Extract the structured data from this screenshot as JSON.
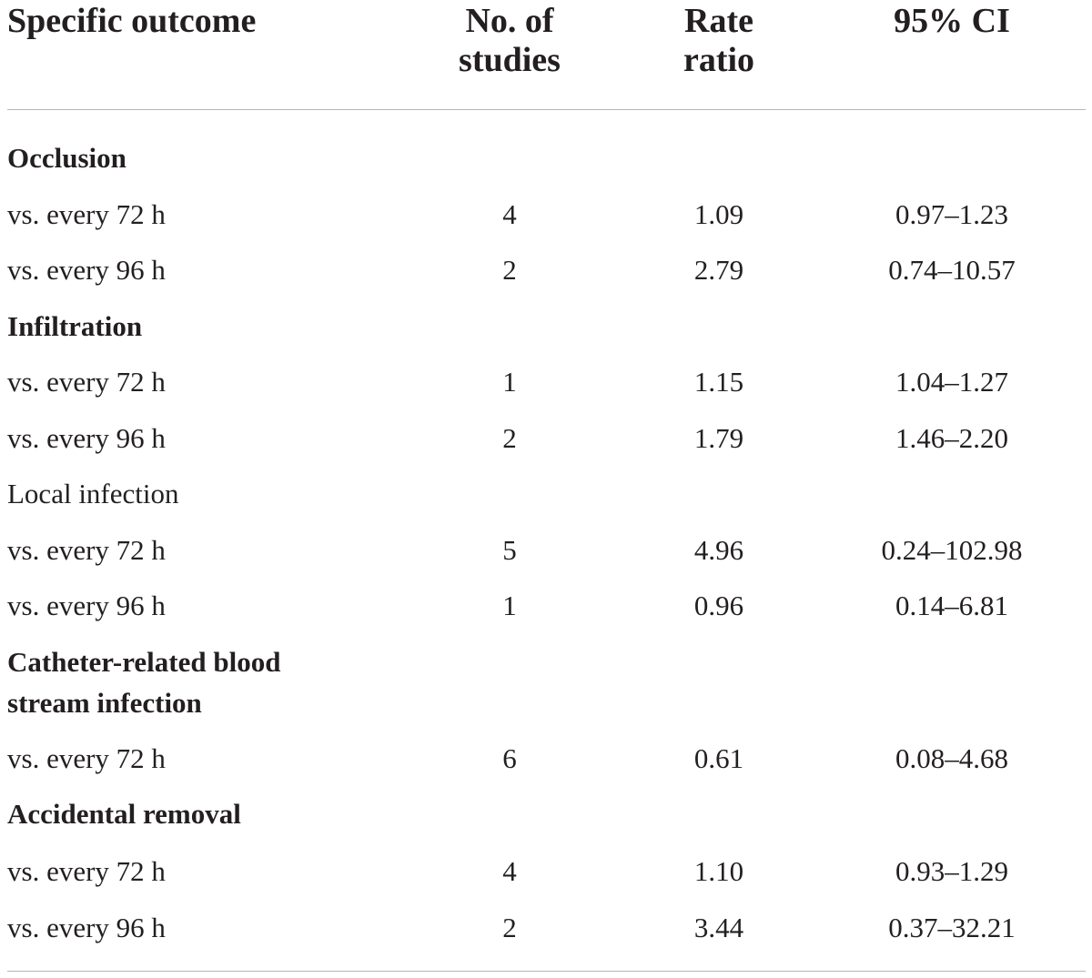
{
  "table": {
    "headers": [
      "Specific outcome",
      "No. of studies",
      "Rate ratio",
      "95% CI"
    ],
    "header_lines": {
      "c0": [
        "Specific outcome"
      ],
      "c1": [
        "No. of",
        "studies"
      ],
      "c2": [
        "Rate",
        "ratio"
      ],
      "c3": [
        "95% CI"
      ]
    },
    "rows": [
      {
        "type": "group",
        "bold": true,
        "label": "Occlusion"
      },
      {
        "type": "data",
        "label": "vs. every 72 h",
        "studies": "4",
        "rate_ratio": "1.09",
        "ci": "0.97–1.23"
      },
      {
        "type": "data",
        "label": "vs. every 96 h",
        "studies": "2",
        "rate_ratio": "2.79",
        "ci": "0.74–10.57"
      },
      {
        "type": "group",
        "bold": true,
        "label": "Infiltration"
      },
      {
        "type": "data",
        "label": "vs. every 72 h",
        "studies": "1",
        "rate_ratio": "1.15",
        "ci": "1.04–1.27"
      },
      {
        "type": "data",
        "label": "vs. every 96 h",
        "studies": "2",
        "rate_ratio": "1.79",
        "ci": "1.46–2.20"
      },
      {
        "type": "group",
        "bold": false,
        "label": "Local infection"
      },
      {
        "type": "data",
        "label": "vs. every 72 h",
        "studies": "5",
        "rate_ratio": "4.96",
        "ci": "0.24–102.98"
      },
      {
        "type": "data",
        "label": "vs. every 96 h",
        "studies": "1",
        "rate_ratio": "0.96",
        "ci": "0.14–6.81"
      },
      {
        "type": "group",
        "bold": true,
        "label": "Catheter-related blood stream infection"
      },
      {
        "type": "data",
        "label": "vs. every 72 h",
        "studies": "6",
        "rate_ratio": "0.61",
        "ci": "0.08–4.68"
      },
      {
        "type": "group",
        "bold": true,
        "label": "Accidental removal"
      },
      {
        "type": "data",
        "label": "vs. every 72 h",
        "studies": "4",
        "rate_ratio": "1.10",
        "ci": "0.93–1.29"
      },
      {
        "type": "data",
        "label": "vs. every 96 h",
        "studies": "2",
        "rate_ratio": "3.44",
        "ci": "0.37–32.21"
      }
    ]
  }
}
